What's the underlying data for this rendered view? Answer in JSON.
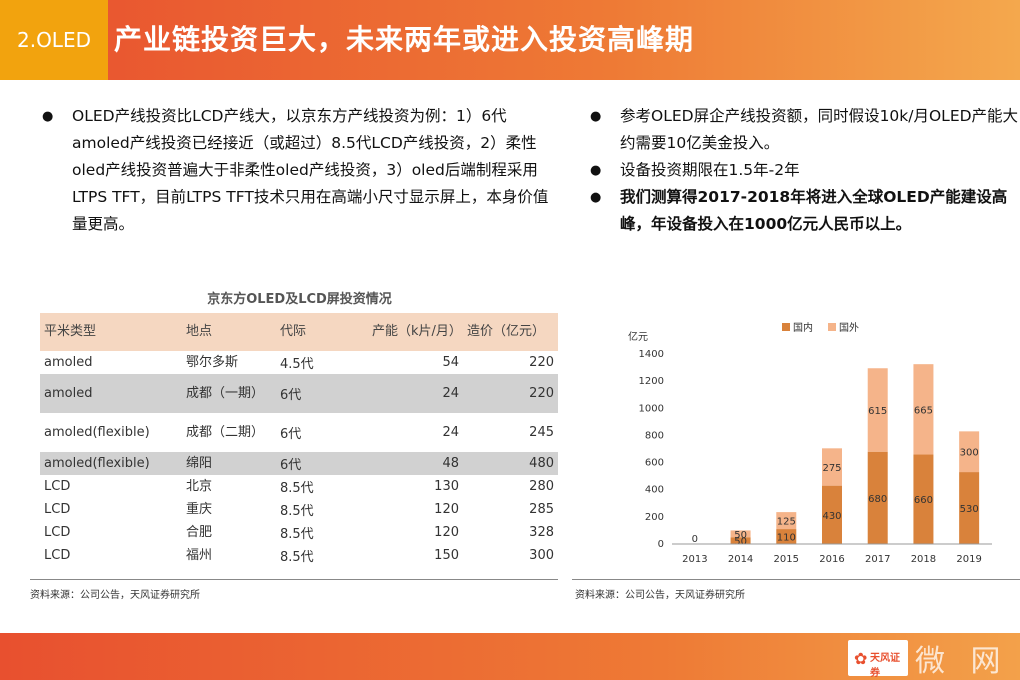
{
  "header": {
    "tag": "2.OLED",
    "title": "产业链投资巨大，未来两年或进入投资高峰期"
  },
  "left_bullets": [
    "OLED产线投资比LCD产线大，以京东方产线投资为例：1）6代amoled产线投资已经接近（或超过）8.5代LCD产线投资，2）柔性oled产线投资普遍大于非柔性oled产线投资，3）oled后端制程采用LTPS TFT，目前LTPS TFT技术只用在高端小尺寸显示屏上，本身价值量更高。"
  ],
  "right_bullets": [
    "参考OLED屏企产线投资额，同时假设10k/月OLED产能大约需要10亿美金投入。",
    "设备投资期限在1.5年-2年",
    "我们测算得2017-2018年将进入全球OLED产能建设高峰，年设备投入在1000亿元人民币以上。"
  ],
  "table": {
    "title": "京东方OLED及LCD屏投资情况",
    "headers": [
      "平米类型",
      "地点",
      "代际",
      "产能（k片/月）",
      "造价（亿元）"
    ],
    "rows": [
      [
        "amoled",
        "鄂尔多斯",
        "4.5代",
        "54",
        "220"
      ],
      [
        "amoled",
        "成都（一期）",
        "6代",
        "24",
        "220"
      ],
      [
        "amoled(flexible)",
        "成都（二期）",
        "6代",
        "24",
        "245"
      ],
      [
        "amoled(flexible)",
        "绵阳",
        "6代",
        "48",
        "480"
      ],
      [
        "LCD",
        "北京",
        "8.5代",
        "130",
        "280"
      ],
      [
        "LCD",
        "重庆",
        "8.5代",
        "120",
        "285"
      ],
      [
        "LCD",
        "合肥",
        "8.5代",
        "120",
        "328"
      ],
      [
        "LCD",
        "福州",
        "8.5代",
        "150",
        "300"
      ]
    ],
    "source": "资料来源：公司公告，天风证券研究所"
  },
  "chart_source": "资料来源：公司公告，天风证券研究所",
  "chart_data": {
    "type": "bar",
    "stacked": true,
    "categories": [
      "2013",
      "2014",
      "2015",
      "2016",
      "2017",
      "2018",
      "2019"
    ],
    "series": [
      {
        "name": "国内",
        "values": [
          0,
          50,
          110,
          430,
          680,
          660,
          530
        ],
        "color": "#d9823b"
      },
      {
        "name": "国外",
        "values": [
          0,
          50,
          125,
          275,
          615,
          665,
          300
        ],
        "color": "#f5b48a"
      }
    ],
    "ylabel": "亿元",
    "ylim": [
      0,
      1400
    ],
    "yticks": [
      0,
      200,
      400,
      600,
      800,
      1000,
      1200,
      1400
    ],
    "grid": false,
    "legend": "top"
  },
  "footer": {
    "logo_text": "天风证券",
    "watermark": "微 网"
  }
}
